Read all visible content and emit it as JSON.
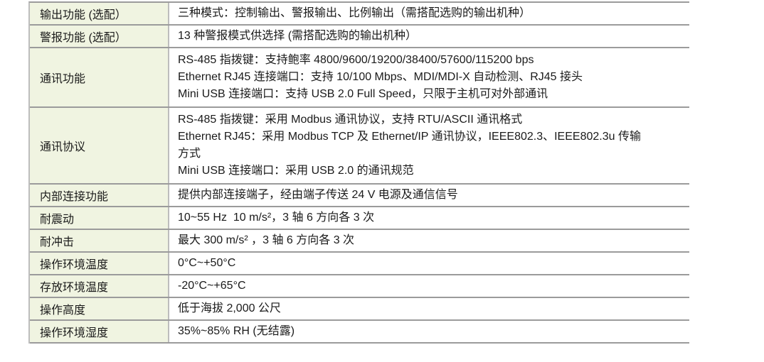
{
  "table": {
    "colors": {
      "label_background": "#f0f4e1",
      "grid_line": "#9b9b9b",
      "column_line": "#bdbdbd",
      "text": "#1a1a1a"
    },
    "rows": [
      {
        "label": "输出功能 (选配）",
        "lines": [
          "三种模式：控制输出、警报输出、比例输出（需搭配选购的输出机种）"
        ]
      },
      {
        "label": "警报功能 (选配）",
        "lines": [
          "13 种警报模式供选择 (需搭配选购的输出机种）"
        ]
      },
      {
        "label": "通讯功能",
        "lines": [
          "RS-485 指拨键：支持鲍率 4800/9600/19200/38400/57600/115200 bps",
          "Ethernet RJ45 连接端口：支持 10/100 Mbps、MDI/MDI-X 自动检测、RJ45 接头",
          "Mini USB 连接端口：支持 USB 2.0 Full Speed，只限于主机可对外部通讯"
        ]
      },
      {
        "label": "通讯协议",
        "lines": [
          "RS-485 指拨键：采用 Modbus 通讯协议，支持 RTU/ASCII 通讯格式",
          "Ethernet RJ45：采用 Modbus TCP 及 Ethernet/IP 通讯协议，IEEE802.3、IEEE802.3u 传输",
          "方式",
          "Mini USB 连接端口：采用 USB 2.0 的通讯规范"
        ]
      },
      {
        "label": "内部连接功能",
        "lines": [
          "提供内部连接端子，经由端子传送 24 V 电源及通信信号"
        ]
      },
      {
        "label": "耐震动",
        "lines": [
          "10~55 Hz  10 m/s²，3 轴 6 方向各 3 次"
        ]
      },
      {
        "label": "耐冲击",
        "lines": [
          "最大 300 m/s² ，3 轴 6 方向各 3 次"
        ]
      },
      {
        "label": "操作环境温度",
        "lines": [
          "0°C~+50°C"
        ]
      },
      {
        "label": "存放环境温度",
        "lines": [
          "-20°C~+65°C"
        ]
      },
      {
        "label": "操作高度",
        "lines": [
          "低于海拔 2,000 公尺"
        ]
      },
      {
        "label": "操作环境湿度",
        "lines": [
          "35%~85% RH (无结露)"
        ]
      }
    ]
  }
}
